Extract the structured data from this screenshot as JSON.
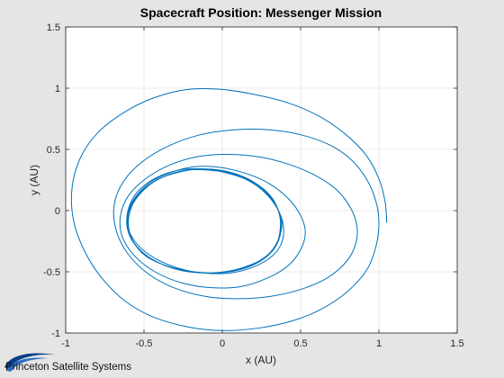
{
  "chart_data": {
    "type": "line",
    "title": "Spacecraft Position: Messenger Mission",
    "xlabel": "x (AU)",
    "ylabel": "y (AU)",
    "xlim": [
      -1,
      1.5
    ],
    "ylim": [
      -1,
      1.5
    ],
    "x_ticks": [
      "-1",
      "-0.5",
      "0",
      "0.5",
      "1",
      "1.5"
    ],
    "y_ticks": [
      "-1",
      "-0.5",
      "0",
      "0.5",
      "1",
      "1.5"
    ],
    "grid": true,
    "series": [
      {
        "color": "#0072bd",
        "points": [
          [
            1.05,
            -0.1
          ],
          [
            1.04,
            0.07
          ],
          [
            1.0,
            0.26
          ],
          [
            0.92,
            0.45
          ],
          [
            0.79,
            0.62
          ],
          [
            0.62,
            0.77
          ],
          [
            0.42,
            0.88
          ],
          [
            0.2,
            0.95
          ],
          [
            0.0,
            0.99
          ],
          [
            -0.22,
            0.99
          ],
          [
            -0.44,
            0.92
          ],
          [
            -0.63,
            0.8
          ],
          [
            -0.8,
            0.63
          ],
          [
            -0.91,
            0.42
          ],
          [
            -0.96,
            0.18
          ],
          [
            -0.95,
            -0.08
          ],
          [
            -0.88,
            -0.33
          ],
          [
            -0.77,
            -0.55
          ],
          [
            -0.62,
            -0.74
          ],
          [
            -0.44,
            -0.87
          ],
          [
            -0.22,
            -0.95
          ],
          [
            0.0,
            -0.98
          ],
          [
            0.23,
            -0.96
          ],
          [
            0.45,
            -0.9
          ],
          [
            0.64,
            -0.8
          ],
          [
            0.8,
            -0.66
          ],
          [
            0.92,
            -0.49
          ],
          [
            0.98,
            -0.3
          ],
          [
            1.0,
            -0.1
          ],
          [
            0.98,
            0.08
          ],
          [
            0.92,
            0.26
          ],
          [
            0.82,
            0.42
          ],
          [
            0.68,
            0.54
          ],
          [
            0.5,
            0.62
          ],
          [
            0.3,
            0.66
          ],
          [
            0.08,
            0.66
          ],
          [
            -0.14,
            0.62
          ],
          [
            -0.34,
            0.53
          ],
          [
            -0.51,
            0.4
          ],
          [
            -0.63,
            0.24
          ],
          [
            -0.69,
            0.05
          ],
          [
            -0.68,
            -0.15
          ],
          [
            -0.61,
            -0.34
          ],
          [
            -0.48,
            -0.51
          ],
          [
            -0.31,
            -0.63
          ],
          [
            -0.11,
            -0.7
          ],
          [
            0.1,
            -0.72
          ],
          [
            0.31,
            -0.7
          ],
          [
            0.51,
            -0.64
          ],
          [
            0.67,
            -0.55
          ],
          [
            0.79,
            -0.42
          ],
          [
            0.85,
            -0.28
          ],
          [
            0.86,
            -0.13
          ],
          [
            0.82,
            0.02
          ],
          [
            0.73,
            0.17
          ],
          [
            0.59,
            0.29
          ],
          [
            0.42,
            0.38
          ],
          [
            0.23,
            0.44
          ],
          [
            0.03,
            0.46
          ],
          [
            -0.16,
            0.44
          ],
          [
            -0.34,
            0.37
          ],
          [
            -0.49,
            0.26
          ],
          [
            -0.6,
            0.12
          ],
          [
            -0.65,
            -0.04
          ],
          [
            -0.64,
            -0.21
          ],
          [
            -0.56,
            -0.37
          ],
          [
            -0.43,
            -0.5
          ],
          [
            -0.26,
            -0.59
          ],
          [
            -0.07,
            -0.63
          ],
          [
            0.12,
            -0.62
          ],
          [
            0.29,
            -0.55
          ],
          [
            0.42,
            -0.45
          ],
          [
            0.5,
            -0.32
          ],
          [
            0.53,
            -0.18
          ],
          [
            0.5,
            -0.04
          ],
          [
            0.42,
            0.1
          ],
          [
            0.3,
            0.22
          ],
          [
            0.16,
            0.3
          ],
          [
            0.0,
            0.35
          ],
          [
            -0.16,
            0.36
          ],
          [
            -0.31,
            0.32
          ],
          [
            -0.45,
            0.24
          ],
          [
            -0.55,
            0.12
          ],
          [
            -0.6,
            -0.01
          ],
          [
            -0.6,
            -0.15
          ],
          [
            -0.54,
            -0.28
          ],
          [
            -0.43,
            -0.39
          ],
          [
            -0.28,
            -0.47
          ],
          [
            -0.12,
            -0.51
          ],
          [
            0.05,
            -0.51
          ],
          [
            0.2,
            -0.46
          ],
          [
            0.32,
            -0.37
          ],
          [
            0.38,
            -0.26
          ],
          [
            0.39,
            -0.12
          ],
          [
            0.35,
            0.02
          ],
          [
            0.27,
            0.15
          ],
          [
            0.16,
            0.25
          ],
          [
            0.02,
            0.31
          ],
          [
            -0.13,
            0.34
          ],
          [
            -0.28,
            0.33
          ],
          [
            -0.42,
            0.27
          ],
          [
            -0.53,
            0.17
          ],
          [
            -0.59,
            0.05
          ],
          [
            -0.61,
            -0.09
          ],
          [
            -0.58,
            -0.23
          ],
          [
            -0.5,
            -0.35
          ],
          [
            -0.38,
            -0.44
          ],
          [
            -0.23,
            -0.49
          ],
          [
            -0.07,
            -0.51
          ],
          [
            0.09,
            -0.49
          ],
          [
            0.22,
            -0.43
          ],
          [
            0.32,
            -0.33
          ],
          [
            0.37,
            -0.2
          ],
          [
            0.37,
            -0.06
          ],
          [
            0.33,
            0.08
          ],
          [
            0.25,
            0.19
          ],
          [
            0.13,
            0.28
          ],
          [
            -0.01,
            0.33
          ],
          [
            -0.16,
            0.34
          ],
          [
            -0.3,
            0.31
          ],
          [
            -0.43,
            0.24
          ],
          [
            -0.53,
            0.13
          ],
          [
            -0.59,
            0.0
          ],
          [
            -0.6,
            -0.14
          ],
          [
            -0.56,
            -0.27
          ],
          [
            -0.47,
            -0.38
          ],
          [
            -0.34,
            -0.46
          ],
          [
            -0.19,
            -0.5
          ],
          [
            -0.03,
            -0.51
          ],
          [
            0.12,
            -0.47
          ],
          [
            0.25,
            -0.4
          ],
          [
            0.34,
            -0.29
          ],
          [
            0.37,
            -0.15
          ],
          [
            0.36,
            -0.01
          ],
          [
            0.3,
            0.12
          ],
          [
            0.2,
            0.23
          ],
          [
            0.07,
            0.3
          ],
          [
            -0.08,
            0.33
          ],
          [
            -0.23,
            0.33
          ],
          [
            -0.37,
            0.28
          ],
          [
            -0.49,
            0.19
          ],
          [
            -0.57,
            0.07
          ],
          [
            -0.61,
            -0.07
          ],
          [
            -0.59,
            -0.21
          ],
          [
            -0.52,
            -0.33
          ],
          [
            -0.4,
            -0.43
          ],
          [
            -0.26,
            -0.49
          ],
          [
            -0.1,
            -0.51
          ],
          [
            0.06,
            -0.49
          ],
          [
            0.2,
            -0.44
          ],
          [
            0.3,
            -0.35
          ],
          [
            0.36,
            -0.23
          ],
          [
            0.38,
            -0.09
          ],
          [
            0.34,
            0.05
          ],
          [
            0.27,
            0.17
          ],
          [
            0.15,
            0.26
          ],
          [
            0.01,
            0.32
          ],
          [
            -0.14,
            0.34
          ],
          [
            -0.29,
            0.31
          ],
          [
            -0.42,
            0.25
          ],
          [
            -0.52,
            0.15
          ],
          [
            -0.58,
            0.03
          ],
          [
            -0.6,
            -0.11
          ],
          [
            -0.57,
            -0.25
          ],
          [
            -0.49,
            -0.37
          ],
          [
            -0.36,
            -0.45
          ],
          [
            -0.21,
            -0.5
          ],
          [
            -0.05,
            -0.51
          ],
          [
            0.11,
            -0.48
          ],
          [
            0.24,
            -0.41
          ],
          [
            0.33,
            -0.31
          ],
          [
            0.37,
            -0.18
          ],
          [
            0.37,
            -0.04
          ]
        ]
      }
    ]
  },
  "footer": {
    "logo_text": "Princeton Satellite Systems"
  }
}
